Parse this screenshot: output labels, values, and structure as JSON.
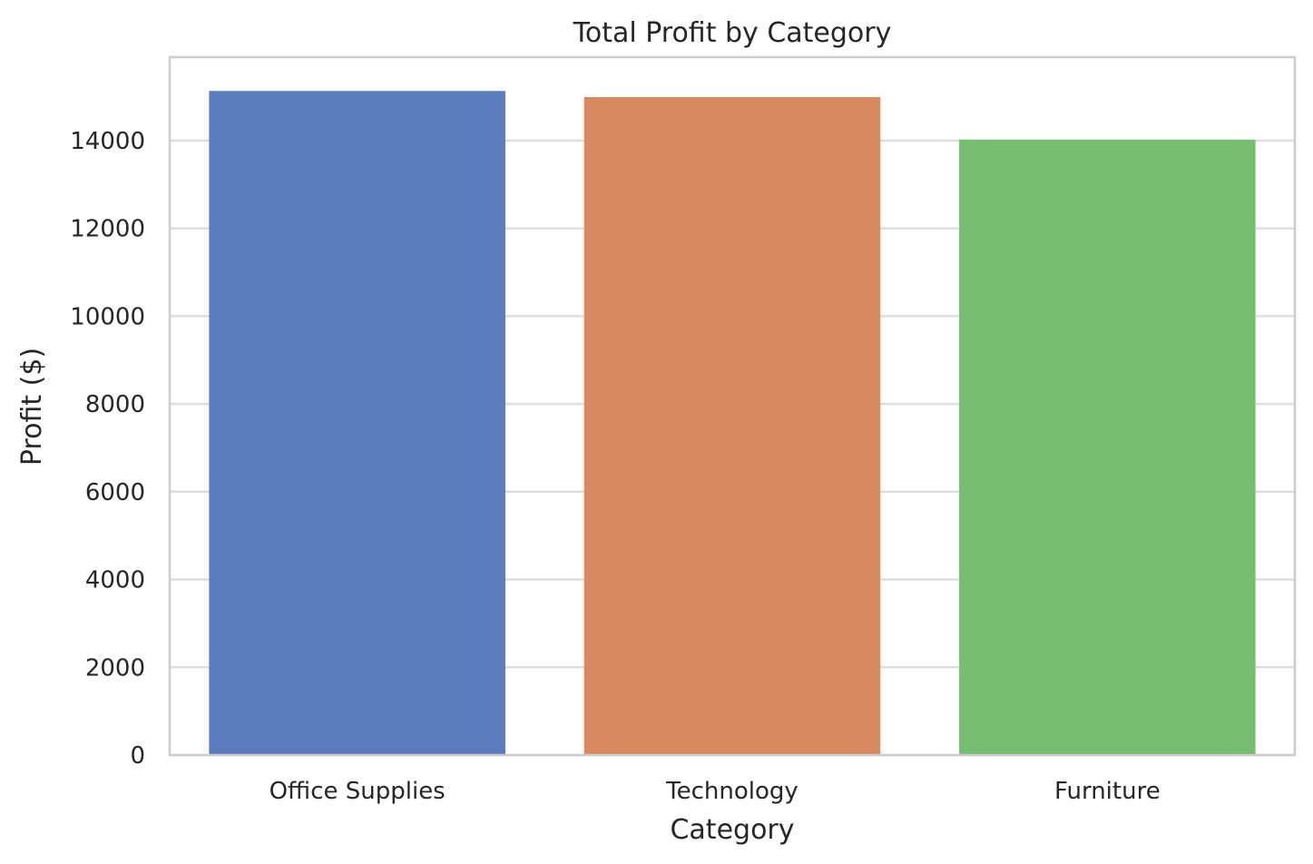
{
  "chart_data": {
    "type": "bar",
    "title": "Total Profit by Category",
    "xlabel": "Category",
    "ylabel": "Profit ($)",
    "categories": [
      "Office Supplies",
      "Technology",
      "Furniture"
    ],
    "values": [
      15130,
      14990,
      14020
    ],
    "colors": [
      "#5b7cbf",
      "#d9895f",
      "#77bf70"
    ],
    "ylim": [
      0,
      15900
    ],
    "yticks": [
      0,
      2000,
      4000,
      6000,
      8000,
      10000,
      12000,
      14000
    ],
    "ytick_labels": [
      "0",
      "2000",
      "4000",
      "6000",
      "8000",
      "10000",
      "12000",
      "14000"
    ],
    "grid": true,
    "grid_color": "#dddddd",
    "frame_color": "#cccccc",
    "text_color": "#262626"
  }
}
